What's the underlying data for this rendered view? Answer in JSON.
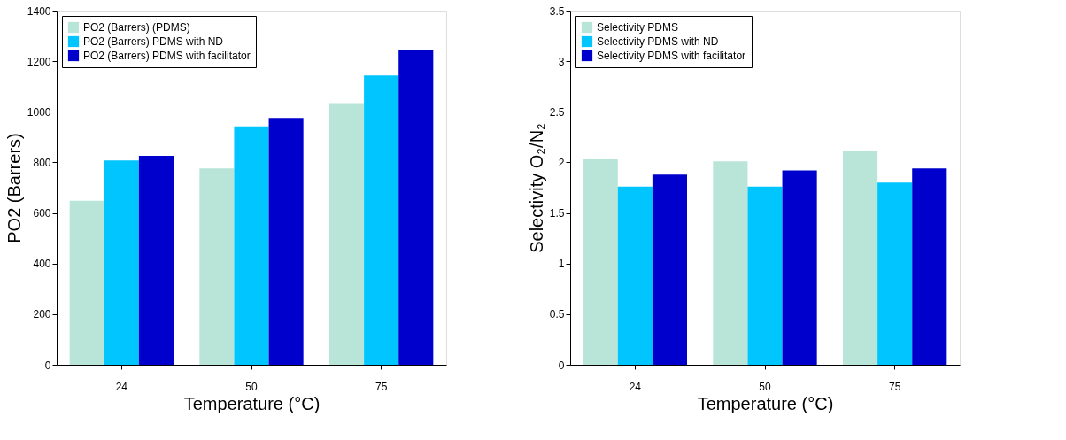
{
  "chart_data": [
    {
      "type": "bar",
      "categories": [
        "24",
        "50",
        "75"
      ],
      "xlabel": "Temperature (°C)",
      "ylabel": "PO2 (Barrers)",
      "ylim": [
        0,
        1400
      ],
      "yticks": [
        0,
        200,
        400,
        600,
        800,
        1000,
        1200,
        1400
      ],
      "grid": false,
      "legend": "top left",
      "series": [
        {
          "name": "PO2 (Barrers) (PDMS)",
          "color": "#b9e5d8",
          "values": [
            648,
            776,
            1034
          ]
        },
        {
          "name": "PO2 (Barrers) PDMS with ND",
          "color": "#00c5ff",
          "values": [
            808,
            942,
            1144
          ]
        },
        {
          "name": "PO2 (Barrers) PDMS with facilitator",
          "color": "#0000cc",
          "values": [
            826,
            976,
            1244
          ]
        }
      ]
    },
    {
      "type": "bar",
      "categories": [
        "24",
        "50",
        "75"
      ],
      "xlabel": "Temperature (°C)",
      "ylabel": "Selectivity O₂/N₂",
      "ylim": [
        0,
        3.5
      ],
      "yticks": [
        0,
        0.5,
        1,
        1.5,
        2,
        2.5,
        3,
        3.5
      ],
      "grid": false,
      "legend": "top left",
      "series": [
        {
          "name": "Selectivity PDMS",
          "color": "#b9e5d8",
          "values": [
            2.03,
            2.01,
            2.11
          ]
        },
        {
          "name": "Selectivity PDMS with ND",
          "color": "#00c5ff",
          "values": [
            1.76,
            1.76,
            1.8
          ]
        },
        {
          "name": "Selectivity PDMS with facilitator",
          "color": "#0000cc",
          "values": [
            1.88,
            1.92,
            1.94
          ]
        }
      ]
    }
  ]
}
